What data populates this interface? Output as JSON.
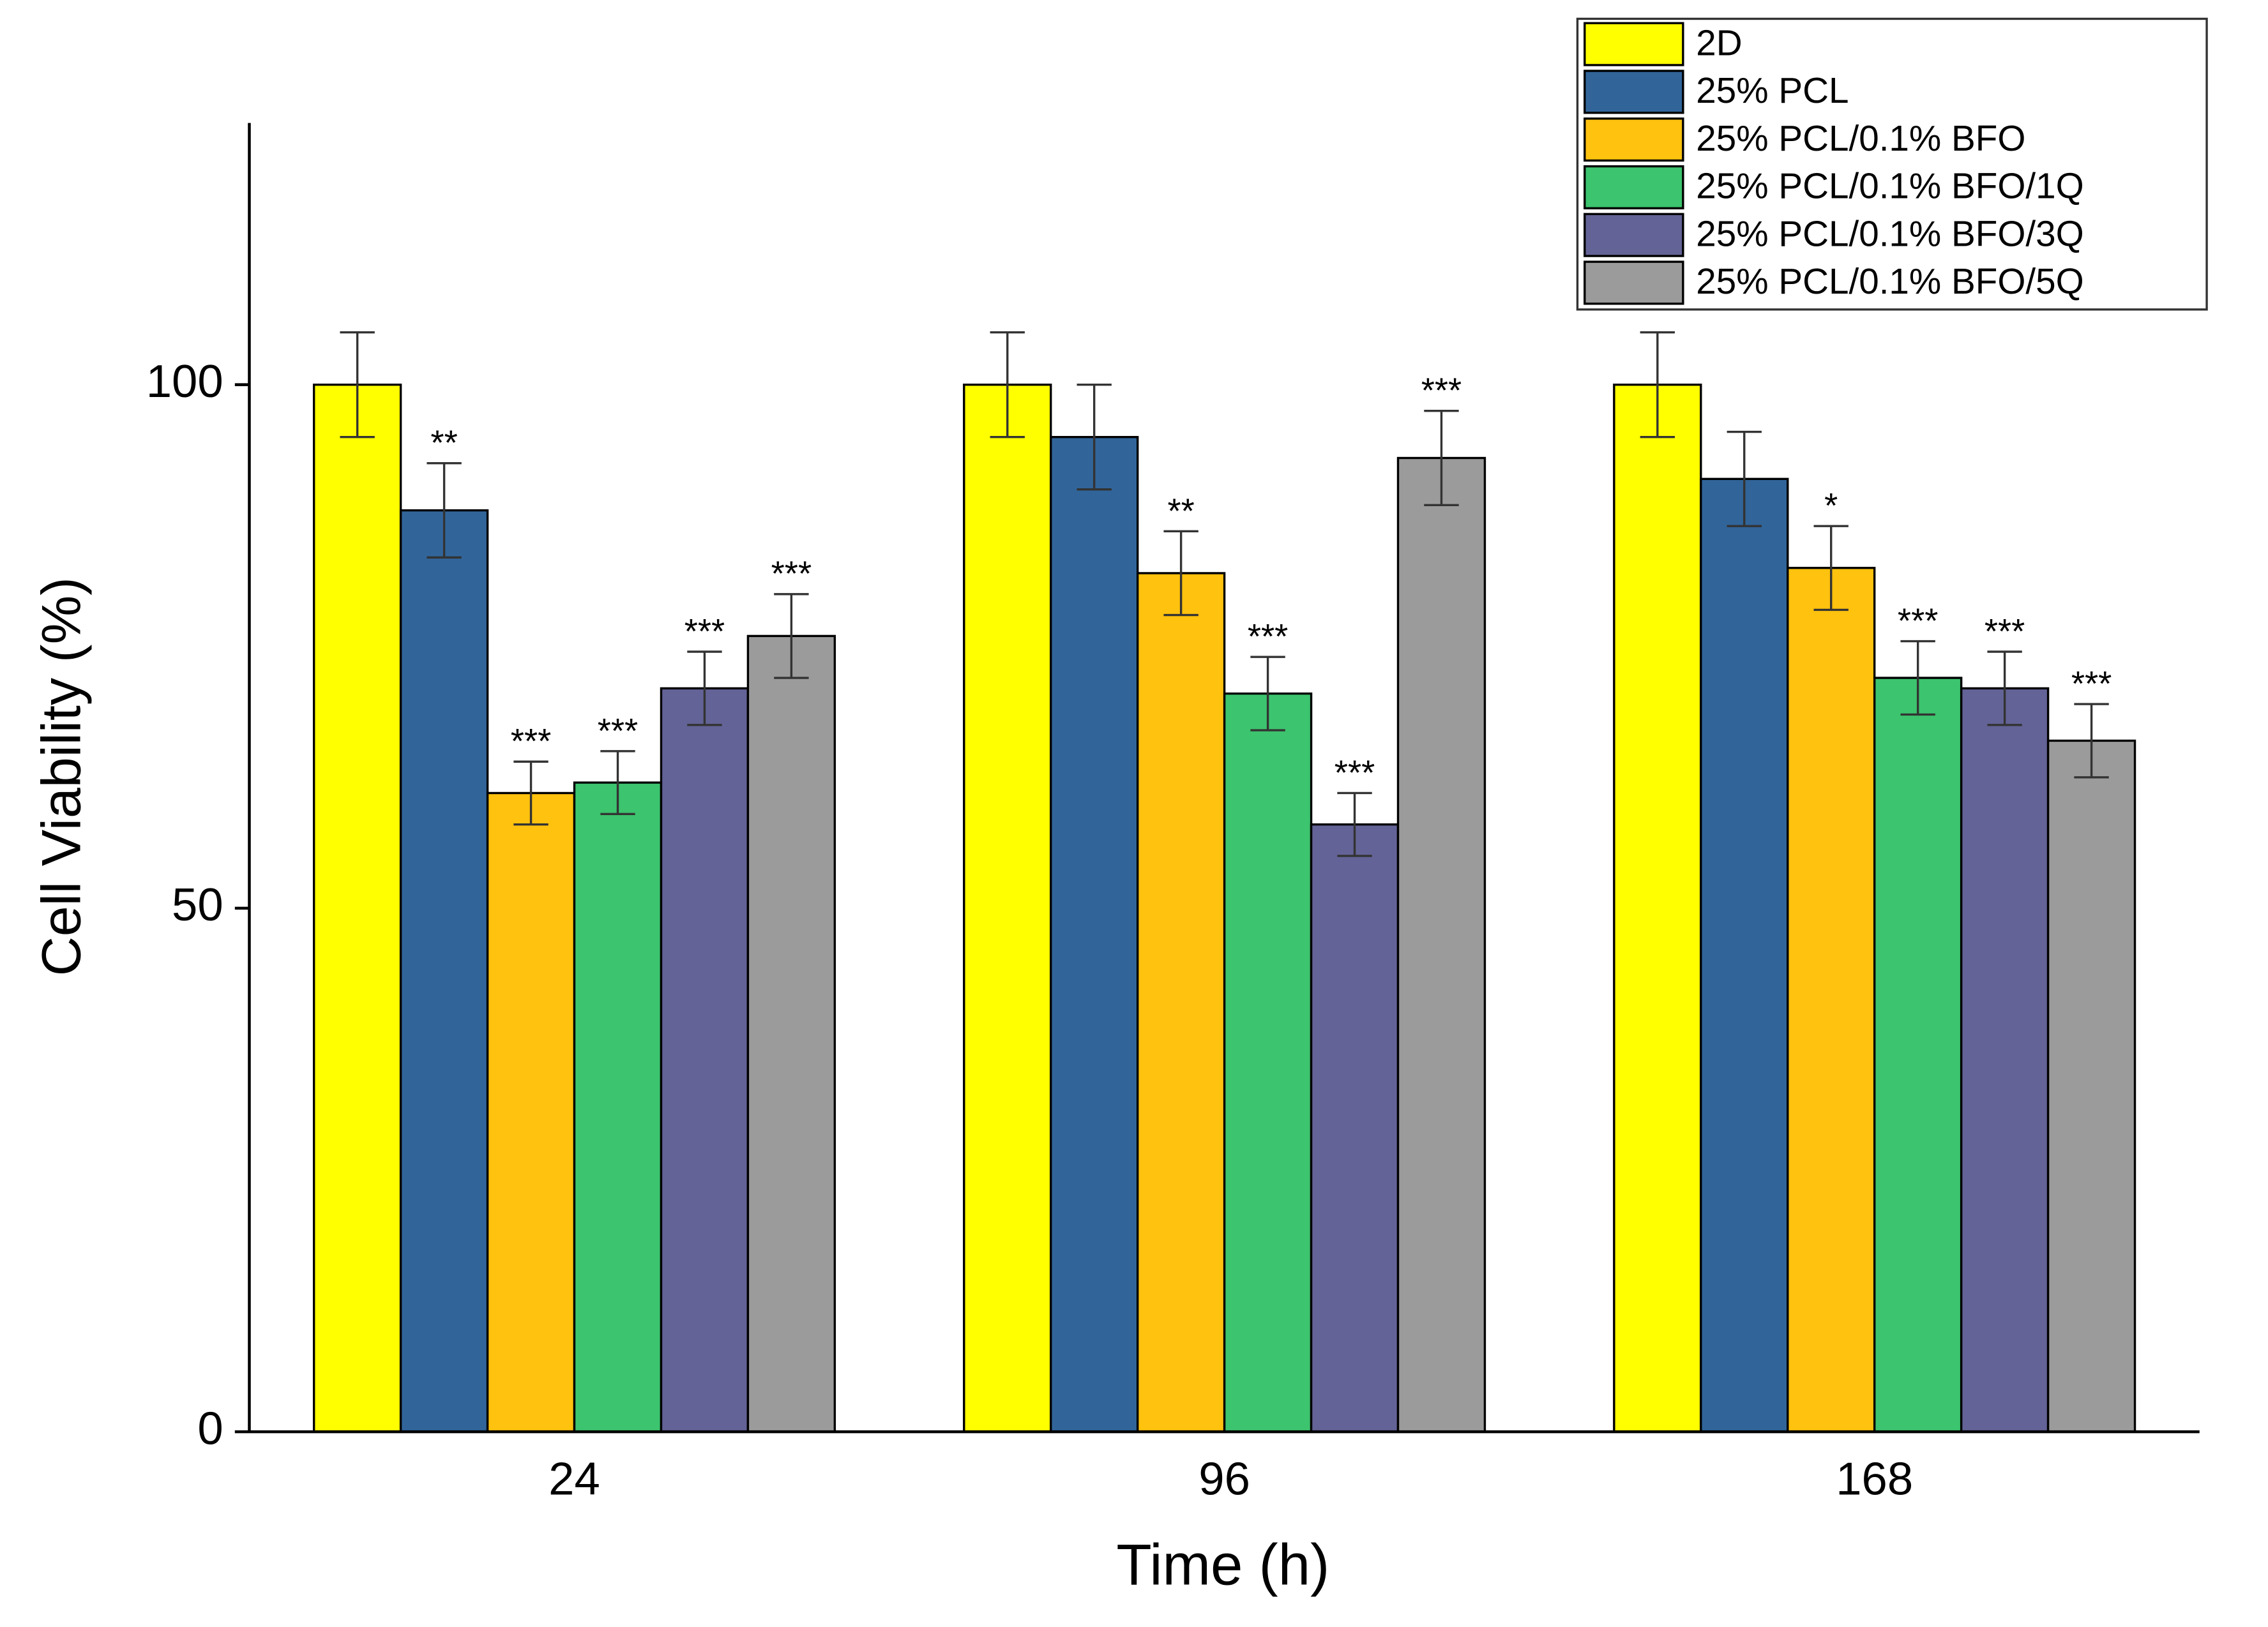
{
  "chart_data": {
    "type": "bar",
    "x_label": "Time (h)",
    "y_label": "Cell Viability (%)",
    "categories": [
      "24",
      "96",
      "168"
    ],
    "series": [
      {
        "name": "2D",
        "color": "#ffff00",
        "values": [
          100,
          100,
          100
        ],
        "errors": [
          5,
          5,
          5
        ],
        "annotations": [
          null,
          null,
          null
        ]
      },
      {
        "name": "25% PCL",
        "color": "#31659a",
        "values": [
          88,
          95,
          91
        ],
        "errors": [
          4.5,
          5,
          4.5
        ],
        "annotations": [
          "**",
          null,
          null
        ]
      },
      {
        "name": "25% PCL/0.1% BFO",
        "color": "#ffc20e",
        "values": [
          61,
          82,
          82.5
        ],
        "errors": [
          3,
          4,
          4
        ],
        "annotations": [
          "***",
          "**",
          "*"
        ]
      },
      {
        "name": "25% PCL/0.1% BFO/1Q",
        "color": "#3cc46e",
        "values": [
          62,
          70.5,
          72
        ],
        "errors": [
          3,
          3.5,
          3.5
        ],
        "annotations": [
          "***",
          "***",
          "***"
        ]
      },
      {
        "name": "25% PCL/0.1% BFO/3Q",
        "color": "#636397",
        "values": [
          71,
          58,
          71
        ],
        "errors": [
          3.5,
          3,
          3.5
        ],
        "annotations": [
          "***",
          "***",
          "***"
        ]
      },
      {
        "name": "25% PCL/0.1% BFO/5Q",
        "color": "#9b9b9b",
        "values": [
          76,
          93,
          66
        ],
        "errors": [
          4,
          4.5,
          3.5
        ],
        "annotations": [
          "***",
          "***",
          "***"
        ]
      }
    ],
    "ylim": [
      0,
      125
    ],
    "yticks": [
      0,
      50,
      100
    ],
    "grid": false,
    "legend": "top-right"
  }
}
